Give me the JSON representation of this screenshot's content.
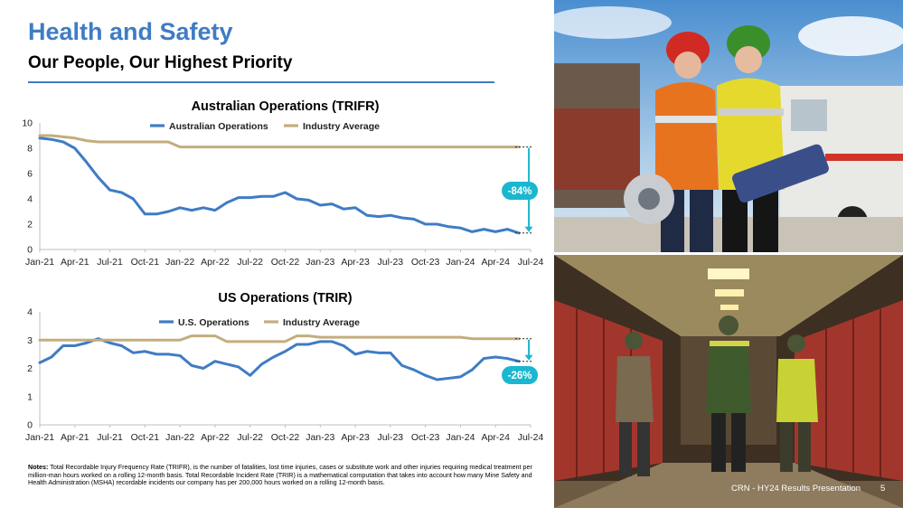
{
  "header": {
    "title": "Health and Safety",
    "subtitle": "Our People, Our Highest Priority"
  },
  "colors": {
    "title_blue": "#3f7cc4",
    "series_blue": "#3f7cc4",
    "industry_gold": "#c4ad7d",
    "badge_teal": "#1bb7cf",
    "axis_gray": "#bfbfbf"
  },
  "chart_data": [
    {
      "type": "line",
      "title": "Australian Operations (TRIFR)",
      "xlabel": "",
      "ylabel": "",
      "ylim": [
        0,
        10
      ],
      "yticks": [
        0,
        2,
        4,
        6,
        8,
        10
      ],
      "x_tick_labels": [
        "Jan-21",
        "Apr-21",
        "Jul-21",
        "Oct-21",
        "Jan-22",
        "Apr-22",
        "Jul-22",
        "Oct-22",
        "Jan-23",
        "Apr-23",
        "Jul-23",
        "Oct-23",
        "Jan-24",
        "Apr-24",
        "Jul-24"
      ],
      "x": [
        "Jan-21",
        "Feb-21",
        "Mar-21",
        "Apr-21",
        "May-21",
        "Jun-21",
        "Jul-21",
        "Aug-21",
        "Sep-21",
        "Oct-21",
        "Nov-21",
        "Dec-21",
        "Jan-22",
        "Feb-22",
        "Mar-22",
        "Apr-22",
        "May-22",
        "Jun-22",
        "Jul-22",
        "Aug-22",
        "Sep-22",
        "Oct-22",
        "Nov-22",
        "Dec-22",
        "Jan-23",
        "Feb-23",
        "Mar-23",
        "Apr-23",
        "May-23",
        "Jun-23",
        "Jul-23",
        "Aug-23",
        "Sep-23",
        "Oct-23",
        "Nov-23",
        "Dec-23",
        "Jan-24",
        "Feb-24",
        "Mar-24",
        "Apr-24",
        "May-24",
        "Jun-24"
      ],
      "legend_position": "top",
      "grid": false,
      "series": [
        {
          "name": "Australian Operations",
          "color": "#3f7cc4",
          "values": [
            8.8,
            8.7,
            8.5,
            8.0,
            6.9,
            5.7,
            4.7,
            4.5,
            4.0,
            2.8,
            2.8,
            3.0,
            3.3,
            3.1,
            3.3,
            3.1,
            3.7,
            4.1,
            4.1,
            4.2,
            4.2,
            4.5,
            4.0,
            3.9,
            3.5,
            3.6,
            3.2,
            3.3,
            2.7,
            2.6,
            2.7,
            2.5,
            2.4,
            2.0,
            2.0,
            1.8,
            1.7,
            1.4,
            1.6,
            1.4,
            1.6,
            1.3
          ]
        },
        {
          "name": "Industry Average",
          "color": "#c4ad7d",
          "values": [
            9.0,
            9.0,
            8.9,
            8.8,
            8.6,
            8.5,
            8.5,
            8.5,
            8.5,
            8.5,
            8.5,
            8.5,
            8.1,
            8.1,
            8.1,
            8.1,
            8.1,
            8.1,
            8.1,
            8.1,
            8.1,
            8.1,
            8.1,
            8.1,
            8.1,
            8.1,
            8.1,
            8.1,
            8.1,
            8.1,
            8.1,
            8.1,
            8.1,
            8.1,
            8.1,
            8.1,
            8.1,
            8.1,
            8.1,
            8.1,
            8.1,
            8.1
          ]
        }
      ],
      "annotation": {
        "text": "-84%",
        "from": 8.1,
        "to": 1.3
      }
    },
    {
      "type": "line",
      "title": "US Operations (TRIR)",
      "xlabel": "",
      "ylabel": "",
      "ylim": [
        0,
        4
      ],
      "yticks": [
        0,
        1,
        2,
        3,
        4
      ],
      "x_tick_labels": [
        "Jan-21",
        "Apr-21",
        "Jul-21",
        "Oct-21",
        "Jan-22",
        "Apr-22",
        "Jul-22",
        "Oct-22",
        "Jan-23",
        "Apr-23",
        "Jul-23",
        "Oct-23",
        "Jan-24",
        "Apr-24",
        "Jul-24"
      ],
      "x": [
        "Jan-21",
        "Feb-21",
        "Mar-21",
        "Apr-21",
        "May-21",
        "Jun-21",
        "Jul-21",
        "Aug-21",
        "Sep-21",
        "Oct-21",
        "Nov-21",
        "Dec-21",
        "Jan-22",
        "Feb-22",
        "Mar-22",
        "Apr-22",
        "May-22",
        "Jun-22",
        "Jul-22",
        "Aug-22",
        "Sep-22",
        "Oct-22",
        "Nov-22",
        "Dec-22",
        "Jan-23",
        "Feb-23",
        "Mar-23",
        "Apr-23",
        "May-23",
        "Jun-23",
        "Jul-23",
        "Aug-23",
        "Sep-23",
        "Oct-23",
        "Nov-23",
        "Dec-23",
        "Jan-24",
        "Feb-24",
        "Mar-24",
        "Apr-24",
        "May-24",
        "Jun-24"
      ],
      "legend_position": "top",
      "grid": false,
      "series": [
        {
          "name": "U.S. Operations",
          "color": "#3f7cc4",
          "values": [
            2.2,
            2.4,
            2.8,
            2.8,
            2.9,
            3.05,
            2.9,
            2.8,
            2.55,
            2.6,
            2.5,
            2.5,
            2.45,
            2.1,
            2.0,
            2.25,
            2.15,
            2.05,
            1.75,
            2.15,
            2.4,
            2.6,
            2.85,
            2.85,
            2.95,
            2.95,
            2.8,
            2.5,
            2.6,
            2.55,
            2.55,
            2.1,
            1.95,
            1.75,
            1.6,
            1.65,
            1.7,
            1.95,
            2.35,
            2.4,
            2.35,
            2.25
          ]
        },
        {
          "name": "Industry Average",
          "color": "#c4ad7d",
          "values": [
            3.0,
            3.0,
            3.0,
            3.0,
            3.0,
            3.0,
            3.0,
            3.0,
            3.0,
            3.0,
            3.0,
            3.0,
            3.0,
            3.15,
            3.15,
            3.15,
            2.95,
            2.95,
            2.95,
            2.95,
            2.95,
            2.95,
            3.15,
            3.15,
            3.1,
            3.1,
            3.1,
            3.1,
            3.1,
            3.1,
            3.1,
            3.1,
            3.1,
            3.1,
            3.1,
            3.1,
            3.1,
            3.05,
            3.05,
            3.05,
            3.05,
            3.05
          ]
        }
      ],
      "annotation": {
        "text": "-26%",
        "from": 3.05,
        "to": 2.25
      }
    }
  ],
  "notes": {
    "label": "Notes:",
    "text": " Total Recordable Injury Frequency Rate (TRIFR), is the number of fatalities, lost time injuries, cases or substitute work and other injuries requiring medical treatment per million-man hours worked on a rolling 12-month basis. Total Recordable Incident Rate (TRIR) is a mathematical computation that takes into account how many Mine Safety and Health Administration (MSHA) recordable incidents our company has per 200,000 hours worked on a rolling 12-month basis."
  },
  "footer": {
    "text": "CRN - HY24 Results Presentation",
    "page": "5"
  },
  "photos": {
    "top_icon": "workers-with-rescue-tools-photo",
    "bottom_icon": "miners-in-locker-corridor-photo"
  }
}
